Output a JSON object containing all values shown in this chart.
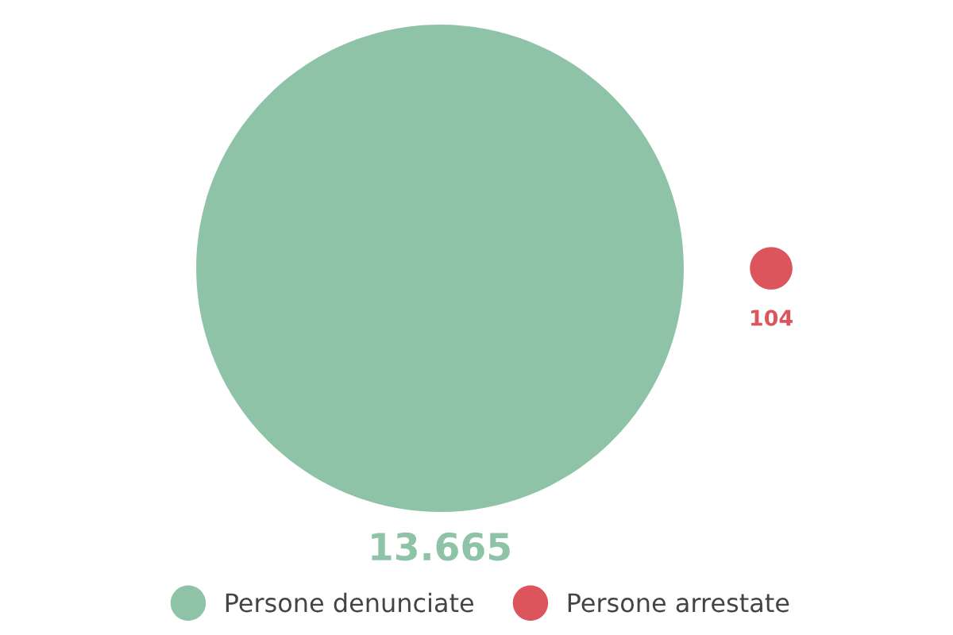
{
  "chart_data": {
    "type": "other",
    "categories": [
      "Persone denunciate",
      "Persone arrestate"
    ],
    "values": [
      13665,
      104
    ],
    "colors": [
      "#8fc3a8",
      "#dc545c"
    ],
    "value_labels": [
      "13.665",
      "104"
    ]
  }
}
